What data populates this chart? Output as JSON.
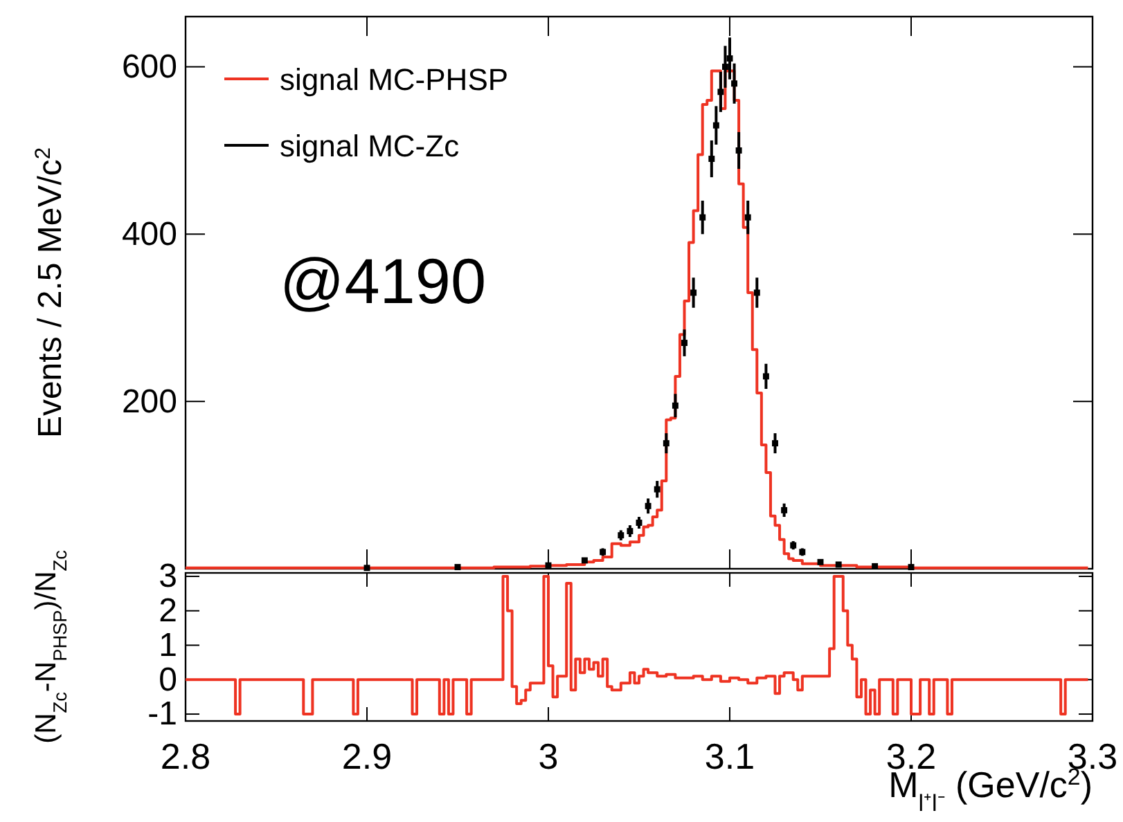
{
  "chart_data": [
    {
      "type": "step",
      "ylabel": "Events / 2.5 MeV/c$^{2}$",
      "annotations": [
        "@4190"
      ],
      "xlim": [
        2.8,
        3.3
      ],
      "xticks": [
        {
          "value": 2.8,
          "label": null
        },
        {
          "value": 2.9,
          "label": null
        },
        {
          "value": 3.0,
          "label": null
        },
        {
          "value": 3.1,
          "label": null
        },
        {
          "value": 3.2,
          "label": null
        },
        {
          "value": 3.3,
          "label": null
        }
      ],
      "ylim": [
        0,
        660
      ],
      "yticks": [
        200,
        400,
        600
      ],
      "tick_labels": "y",
      "legend": "top left",
      "series": [
        {
          "name": "signal MC-PHSP",
          "color": "#ee3322",
          "x": [
            2.8,
            2.97,
            2.99,
            3.0,
            3.01,
            3.02,
            3.025,
            3.03,
            3.035,
            3.04,
            3.045,
            3.05,
            3.0525,
            3.055,
            3.0575,
            3.06,
            3.0625,
            3.065,
            3.0675,
            3.07,
            3.0725,
            3.075,
            3.0775,
            3.08,
            3.0825,
            3.085,
            3.0875,
            3.09,
            3.0925,
            3.095,
            3.0975,
            3.1,
            3.1025,
            3.105,
            3.1075,
            3.11,
            3.1125,
            3.115,
            3.1175,
            3.12,
            3.1225,
            3.125,
            3.1275,
            3.13,
            3.1325,
            3.135,
            3.14,
            3.15,
            3.17,
            3.2,
            3.2975
          ],
          "values": [
            1,
            2,
            3,
            4,
            5,
            8,
            10,
            14,
            30,
            28,
            32,
            40,
            50,
            52,
            62,
            70,
            105,
            178,
            180,
            230,
            280,
            320,
            390,
            428,
            495,
            555,
            560,
            595,
            595,
            550,
            595,
            595,
            560,
            460,
            408,
            330,
            262,
            210,
            148,
            115,
            63,
            52,
            35,
            18,
            12,
            10,
            6,
            4,
            2,
            1,
            1
          ]
        },
        {
          "name": "signal MC-Zc",
          "type": "scatter",
          "color": "#000000",
          "marker": "square",
          "x": [
            2.9,
            2.95,
            3.0,
            3.02,
            3.03,
            3.04,
            3.045,
            3.05,
            3.055,
            3.06,
            3.065,
            3.07,
            3.075,
            3.08,
            3.085,
            3.09,
            3.0925,
            3.095,
            3.0975,
            3.1,
            3.1025,
            3.105,
            3.11,
            3.115,
            3.12,
            3.125,
            3.13,
            3.135,
            3.14,
            3.15,
            3.16,
            3.18,
            3.2
          ],
          "values": [
            1,
            2,
            4,
            10,
            20,
            40,
            45,
            55,
            75,
            95,
            150,
            195,
            270,
            330,
            420,
            490,
            530,
            570,
            600,
            610,
            580,
            500,
            420,
            330,
            230,
            150,
            70,
            28,
            20,
            8,
            5,
            3,
            2
          ],
          "errors": [
            1,
            1.4,
            2,
            3,
            4.5,
            6,
            7,
            7,
            9,
            10,
            12,
            14,
            16,
            18,
            20,
            22,
            23,
            24,
            25,
            25,
            24,
            22,
            20,
            18,
            15,
            12,
            8,
            5,
            4.5,
            3,
            2.2,
            1.7,
            1.4
          ]
        }
      ]
    },
    {
      "type": "step",
      "xlabel": "M$_{l⁺l⁻}$ (GeV/c$^{2}$)",
      "ylabel": "(N$_{Zc}$-N$_{PHSP}$)/N$_{Zc}$",
      "xlim": [
        2.8,
        3.3
      ],
      "xticks": [
        2.8,
        2.9,
        3,
        3.1,
        3.2,
        3.3
      ],
      "ylim": [
        -1.2,
        3.1
      ],
      "yticks": [
        -1,
        0,
        1,
        2,
        3
      ],
      "series": [
        {
          "color": "#ee3322",
          "x": [
            2.8,
            2.8275,
            2.83,
            2.865,
            2.87,
            2.8925,
            2.895,
            2.925,
            2.9275,
            2.94,
            2.9425,
            2.945,
            2.9475,
            2.955,
            2.9575,
            2.975,
            2.9775,
            2.98,
            2.9825,
            2.985,
            2.9875,
            2.99,
            2.9975,
            3.0,
            3.0025,
            3.005,
            3.01,
            3.0125,
            3.015,
            3.0175,
            3.02,
            3.0225,
            3.025,
            3.0275,
            3.03,
            3.0325,
            3.035,
            3.04,
            3.045,
            3.0475,
            3.05,
            3.0525,
            3.055,
            3.06,
            3.065,
            3.07,
            3.08,
            3.085,
            3.09,
            3.095,
            3.1,
            3.105,
            3.11,
            3.115,
            3.12,
            3.125,
            3.1275,
            3.13,
            3.135,
            3.1375,
            3.14,
            3.155,
            3.1575,
            3.1625,
            3.165,
            3.1675,
            3.17,
            3.1725,
            3.175,
            3.1775,
            3.18,
            3.1825,
            3.19,
            3.1925,
            3.2,
            3.205,
            3.21,
            3.2125,
            3.22,
            3.2225,
            3.2825,
            3.285,
            3.2975
          ],
          "values": [
            0,
            -1,
            0,
            -1,
            0,
            -1,
            0,
            -1,
            0,
            -1,
            0,
            -1,
            0,
            -1,
            0,
            3,
            2,
            -0.2,
            -0.7,
            -0.6,
            -0.3,
            -0.1,
            3,
            0.4,
            -0.5,
            0.1,
            2.8,
            -0.3,
            0.6,
            0.2,
            0.6,
            0.3,
            0.5,
            0.1,
            0.6,
            -0.2,
            -0.3,
            -0.1,
            0.2,
            -0.1,
            0.1,
            0.3,
            0.2,
            0.1,
            0.15,
            0.05,
            0.1,
            0,
            0.1,
            -0.05,
            0.05,
            0,
            -0.1,
            0.05,
            0.1,
            -0.4,
            0.1,
            0.2,
            0,
            -0.3,
            0.1,
            0.9,
            3,
            2,
            1,
            0.6,
            -0.5,
            0,
            -1,
            -0.3,
            -1,
            0,
            -1,
            0,
            -1,
            0,
            -1,
            0,
            -1,
            0,
            -1,
            0,
            0
          ]
        }
      ]
    }
  ]
}
